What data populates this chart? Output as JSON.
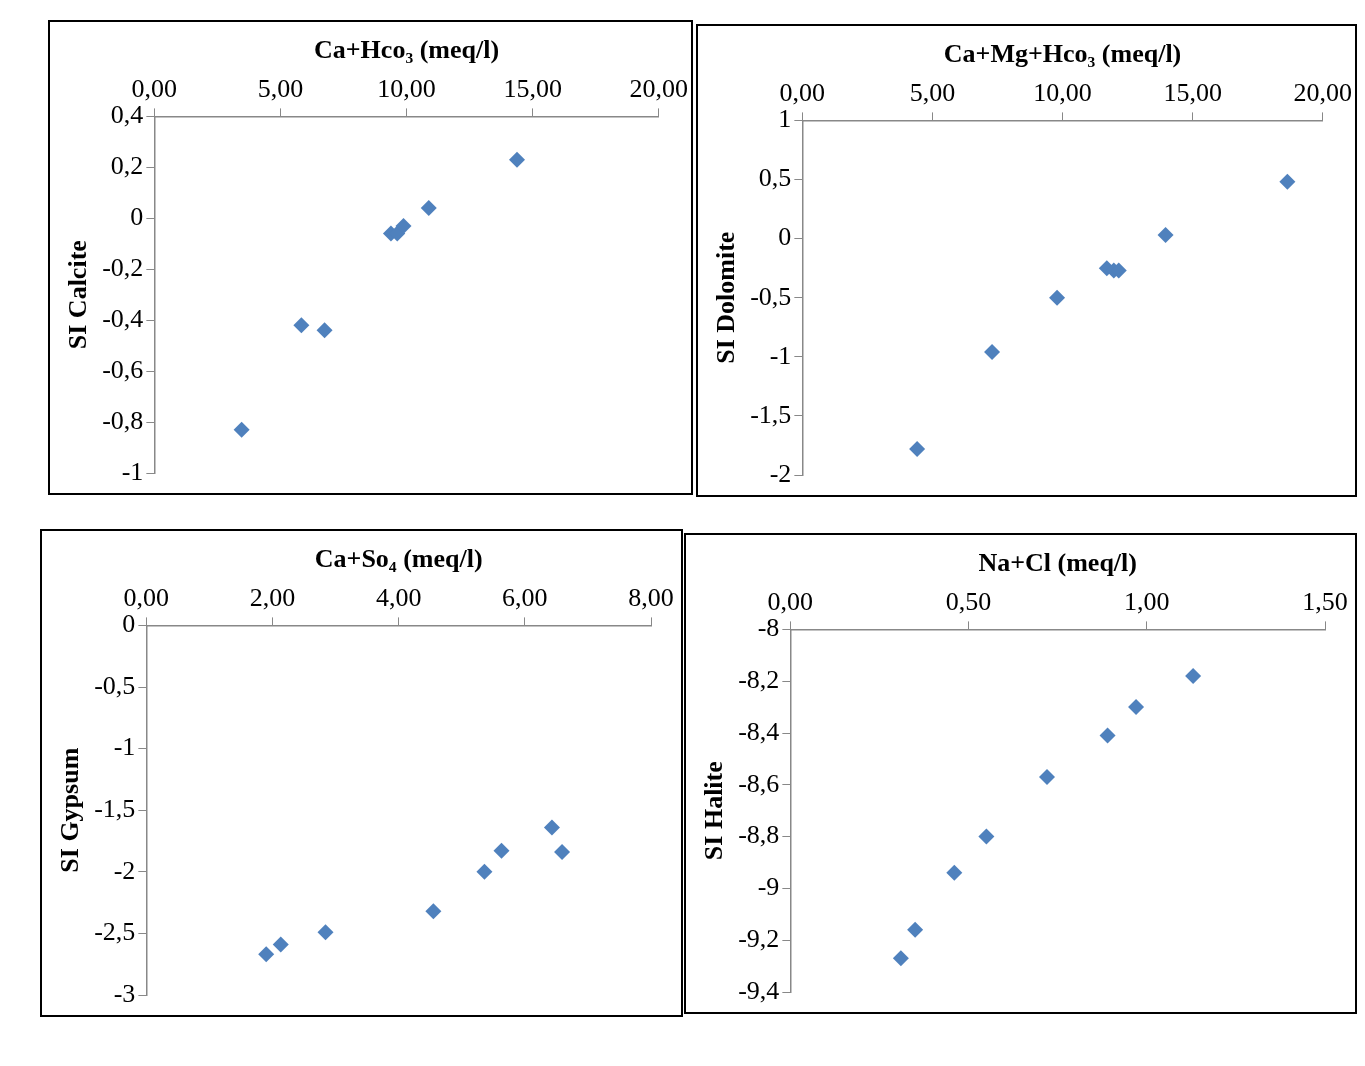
{
  "chart_data": [
    {
      "type": "scatter",
      "xlabel": "Ca+Hco₃ (meq/l)",
      "ylabel": "SI Calcite",
      "marker": "diamond",
      "grid": false,
      "x": [
        3.46,
        5.83,
        6.75,
        9.38,
        9.63,
        9.88,
        10.88,
        14.38
      ],
      "series": [
        {
          "color": "#4f81bd",
          "values": [
            -0.83,
            -0.42,
            -0.44,
            -0.06,
            -0.06,
            -0.03,
            0.04,
            0.23
          ]
        }
      ],
      "xlim": [
        0,
        20
      ],
      "xticks": [
        {
          "value": 0,
          "label": "0,00"
        },
        {
          "value": 5,
          "label": "5,00"
        },
        {
          "value": 10,
          "label": "10,00"
        },
        {
          "value": 15,
          "label": "15,00"
        },
        {
          "value": 20,
          "label": "20,00"
        }
      ],
      "ylim": [
        -1,
        0.4
      ],
      "yticks": [
        {
          "value": -1,
          "label": "-1"
        },
        {
          "value": -0.8,
          "label": "-0,8"
        },
        {
          "value": -0.6,
          "label": "-0,6"
        },
        {
          "value": -0.4,
          "label": "-0,4"
        },
        {
          "value": -0.2,
          "label": "-0,2"
        },
        {
          "value": 0,
          "label": "0"
        },
        {
          "value": 0.2,
          "label": "0,2"
        },
        {
          "value": 0.4,
          "label": "0,4"
        }
      ]
    },
    {
      "type": "scatter",
      "xlabel": "Ca+Mg+Hco₃ (meq/l)",
      "ylabel": "SI Dolomite",
      "marker": "diamond",
      "grid": false,
      "x": [
        4.41,
        7.29,
        9.79,
        11.7,
        11.97,
        12.16,
        13.96,
        18.64
      ],
      "series": [
        {
          "color": "#4f81bd",
          "values": [
            -1.78,
            -0.96,
            -0.5,
            -0.25,
            -0.27,
            -0.27,
            0.03,
            0.48
          ]
        }
      ],
      "xlim": [
        0,
        20
      ],
      "xticks": [
        {
          "value": 0,
          "label": "0,00"
        },
        {
          "value": 5,
          "label": "5,00"
        },
        {
          "value": 10,
          "label": "10,00"
        },
        {
          "value": 15,
          "label": "15,00"
        },
        {
          "value": 20,
          "label": "20,00"
        }
      ],
      "ylim": [
        -2,
        1
      ],
      "yticks": [
        {
          "value": -2,
          "label": "-2"
        },
        {
          "value": -1.5,
          "label": "-1,5"
        },
        {
          "value": -1,
          "label": "-1"
        },
        {
          "value": -0.5,
          "label": "-0,5"
        },
        {
          "value": 0,
          "label": "0"
        },
        {
          "value": 0.5,
          "label": "0,5"
        },
        {
          "value": 1,
          "label": "1"
        }
      ]
    },
    {
      "type": "scatter",
      "xlabel": "Ca+So₄ (meq/l)",
      "ylabel": "SI Gypsum",
      "marker": "diamond",
      "grid": false,
      "x": [
        1.9,
        2.13,
        2.84,
        4.55,
        5.36,
        5.63,
        6.43,
        6.59
      ],
      "series": [
        {
          "color": "#4f81bd",
          "values": [
            -2.67,
            -2.59,
            -2.49,
            -2.32,
            -2.0,
            -1.83,
            -1.64,
            -1.84
          ]
        }
      ],
      "xlim": [
        0,
        8
      ],
      "xticks": [
        {
          "value": 0,
          "label": "0,00"
        },
        {
          "value": 2,
          "label": "2,00"
        },
        {
          "value": 4,
          "label": "4,00"
        },
        {
          "value": 6,
          "label": "6,00"
        },
        {
          "value": 8,
          "label": "8,00"
        }
      ],
      "ylim": [
        -3,
        0
      ],
      "yticks": [
        {
          "value": -3,
          "label": "-3"
        },
        {
          "value": -2.5,
          "label": "-2,5"
        },
        {
          "value": -2,
          "label": "-2"
        },
        {
          "value": -1.5,
          "label": "-1,5"
        },
        {
          "value": -1,
          "label": "-1"
        },
        {
          "value": -0.5,
          "label": "-0,5"
        },
        {
          "value": 0,
          "label": "0"
        }
      ]
    },
    {
      "type": "scatter",
      "xlabel": "Na+Cl (meq/l)",
      "ylabel": "SI Halite",
      "marker": "diamond",
      "grid": false,
      "x": [
        0.31,
        0.35,
        0.46,
        0.55,
        0.72,
        0.89,
        0.97,
        1.13
      ],
      "series": [
        {
          "color": "#4f81bd",
          "values": [
            -9.27,
            -9.16,
            -8.94,
            -8.8,
            -8.57,
            -8.41,
            -8.3,
            -8.18
          ]
        }
      ],
      "xlim": [
        0,
        1.5
      ],
      "xticks": [
        {
          "value": 0,
          "label": "0,00"
        },
        {
          "value": 0.5,
          "label": "0,50"
        },
        {
          "value": 1,
          "label": "1,00"
        },
        {
          "value": 1.5,
          "label": "1,50"
        }
      ],
      "ylim": [
        -9.4,
        -8
      ],
      "yticks": [
        {
          "value": -9.4,
          "label": "-9,4"
        },
        {
          "value": -9.2,
          "label": "-9,2"
        },
        {
          "value": -9,
          "label": "-9"
        },
        {
          "value": -8.8,
          "label": "-8,8"
        },
        {
          "value": -8.6,
          "label": "-8,6"
        },
        {
          "value": -8.4,
          "label": "-8,4"
        },
        {
          "value": -8.2,
          "label": "-8,2"
        },
        {
          "value": -8,
          "label": "-8"
        }
      ]
    }
  ]
}
